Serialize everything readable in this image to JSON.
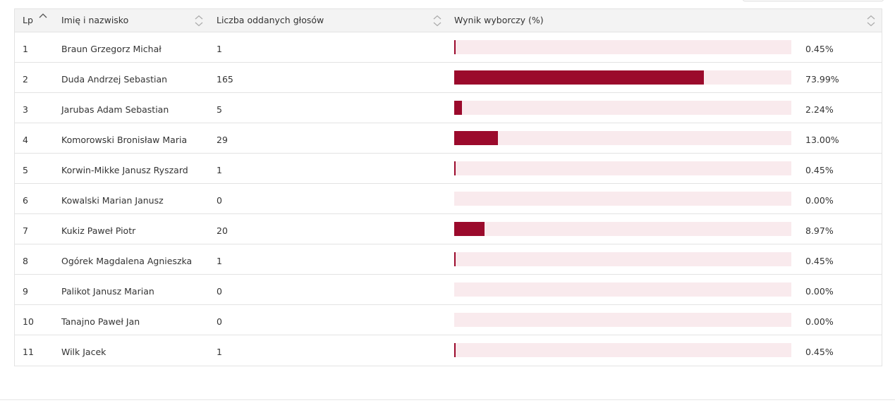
{
  "table": {
    "headers": {
      "lp": "Lp",
      "name": "Imię i nazwisko",
      "votes": "Liczba oddanych głosów",
      "result": "Wynik wyborczy (%)"
    },
    "rows": [
      {
        "lp": "1",
        "name": "Braun Grzegorz Michał",
        "votes": "1",
        "percent": "0.45%",
        "share": 0.0045
      },
      {
        "lp": "2",
        "name": "Duda Andrzej Sebastian",
        "votes": "165",
        "percent": "73.99%",
        "share": 0.7399
      },
      {
        "lp": "3",
        "name": "Jarubas Adam Sebastian",
        "votes": "5",
        "percent": "2.24%",
        "share": 0.0224
      },
      {
        "lp": "4",
        "name": "Komorowski Bronisław Maria",
        "votes": "29",
        "percent": "13.00%",
        "share": 0.13
      },
      {
        "lp": "5",
        "name": "Korwin-Mikke Janusz Ryszard",
        "votes": "1",
        "percent": "0.45%",
        "share": 0.0045
      },
      {
        "lp": "6",
        "name": "Kowalski Marian Janusz",
        "votes": "0",
        "percent": "0.00%",
        "share": 0
      },
      {
        "lp": "7",
        "name": "Kukiz Paweł Piotr",
        "votes": "20",
        "percent": "8.97%",
        "share": 0.0897
      },
      {
        "lp": "8",
        "name": "Ogórek Magdalena Agnieszka",
        "votes": "1",
        "percent": "0.45%",
        "share": 0.0045
      },
      {
        "lp": "9",
        "name": "Palikot Janusz Marian",
        "votes": "0",
        "percent": "0.00%",
        "share": 0
      },
      {
        "lp": "10",
        "name": "Tanajno Paweł Jan",
        "votes": "0",
        "percent": "0.00%",
        "share": 0
      },
      {
        "lp": "11",
        "name": "Wilk Jacek",
        "votes": "1",
        "percent": "0.45%",
        "share": 0.0045
      }
    ]
  },
  "colors": {
    "bar_fill": "#9b0a2c",
    "bar_track": "#f9eaed",
    "header_bg": "#f3f3f3",
    "border": "#e3e3e3"
  }
}
